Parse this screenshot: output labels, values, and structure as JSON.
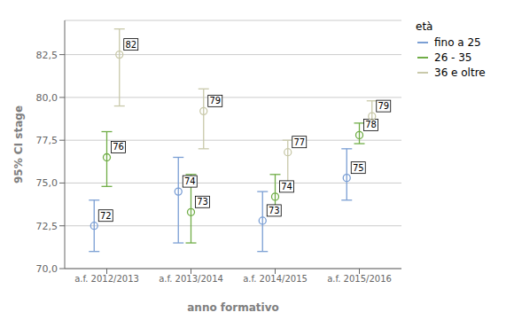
{
  "chart_data": {
    "type": "scatter",
    "xlabel": "anno formativo",
    "ylabel": "95% CI stage",
    "categories": [
      "a.f. 2012/2013",
      "a.f. 2013/2014",
      "a.f. 2014/2015",
      "a.f. 2015/2016"
    ],
    "ylim": [
      70.0,
      84.5
    ],
    "yticks": [
      {
        "value": 70.0,
        "label": "70,0"
      },
      {
        "value": 72.5,
        "label": "72,5"
      },
      {
        "value": 75.0,
        "label": "75,0"
      },
      {
        "value": 77.5,
        "label": "77,5"
      },
      {
        "value": 80.0,
        "label": "80,0"
      },
      {
        "value": 82.5,
        "label": "82,5"
      }
    ],
    "grid": true,
    "legend": "right",
    "legend_title": "età",
    "data_labels": true,
    "series": [
      {
        "name": "fino a 25",
        "color": "#7b9fd4",
        "values": [
          72.5,
          74.5,
          72.8,
          75.3
        ],
        "ci_low": [
          71.0,
          71.5,
          71.0,
          74.0
        ],
        "ci_high": [
          74.0,
          76.5,
          74.5,
          77.0
        ],
        "value_labels": [
          "72",
          "74",
          "73",
          "75"
        ]
      },
      {
        "name": "26 - 35",
        "color": "#70ad47",
        "values": [
          76.5,
          73.3,
          74.2,
          77.8
        ],
        "ci_low": [
          74.8,
          71.5,
          73.3,
          77.3
        ],
        "ci_high": [
          78.0,
          75.5,
          75.5,
          78.5
        ],
        "value_labels": [
          "76",
          "73",
          "74",
          "78"
        ]
      },
      {
        "name": "36 e oltre",
        "color": "#c9c9aa",
        "values": [
          82.5,
          79.2,
          76.8,
          78.9
        ],
        "ci_low": [
          79.5,
          77.0,
          75.0,
          78.3
        ],
        "ci_high": [
          84.0,
          80.5,
          77.5,
          79.8
        ],
        "value_labels": [
          "82",
          "79",
          "77",
          "79"
        ]
      }
    ]
  }
}
